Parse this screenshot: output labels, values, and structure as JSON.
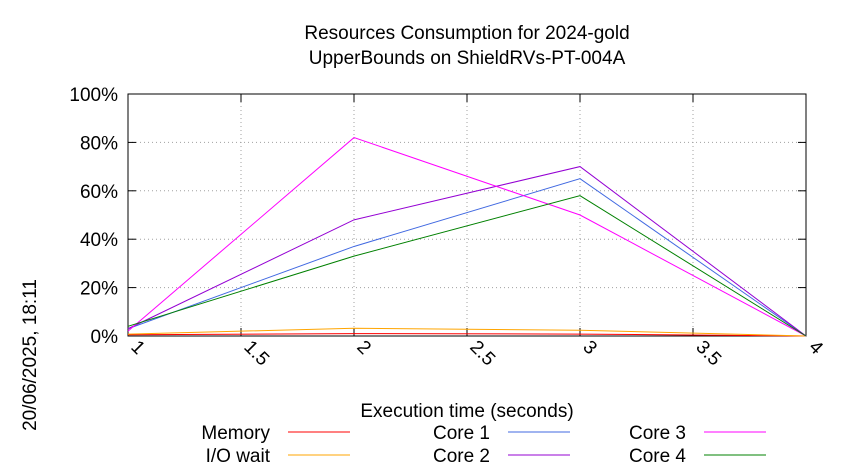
{
  "chart_data": {
    "type": "line",
    "title": "Resources Consumption for 2024-gold",
    "subtitle": "UpperBounds on ShieldRVs-PT-004A",
    "xlabel": "Execution time (seconds)",
    "ylabel": "",
    "side_label": "20/06/2025, 18:11",
    "xlim": [
      1,
      4
    ],
    "ylim": [
      0,
      100
    ],
    "x_ticks": [
      "1",
      "1.5",
      "2",
      "2.5",
      "3",
      "3.5",
      "4"
    ],
    "y_ticks": [
      "0%",
      "20%",
      "40%",
      "60%",
      "80%",
      "100%"
    ],
    "grid": true,
    "legend_position": "bottom",
    "x": [
      1,
      2,
      3,
      4
    ],
    "series": [
      {
        "name": "Memory",
        "color": "#ff0000",
        "values": [
          0.5,
          1.0,
          0.8,
          0.0
        ]
      },
      {
        "name": "I/O wait",
        "color": "#ffa500",
        "values": [
          0.8,
          3.2,
          2.4,
          0.0
        ]
      },
      {
        "name": "Core 1",
        "color": "#4169e1",
        "values": [
          3.0,
          37.0,
          65.0,
          0.0
        ]
      },
      {
        "name": "Core 2",
        "color": "#9400d3",
        "values": [
          3.0,
          48.0,
          70.0,
          0.0
        ]
      },
      {
        "name": "Core 3",
        "color": "#ff00ff",
        "values": [
          2.0,
          82.0,
          50.0,
          0.0
        ]
      },
      {
        "name": "Core 4",
        "color": "#008000",
        "values": [
          4.0,
          33.0,
          58.0,
          0.0
        ]
      }
    ]
  }
}
